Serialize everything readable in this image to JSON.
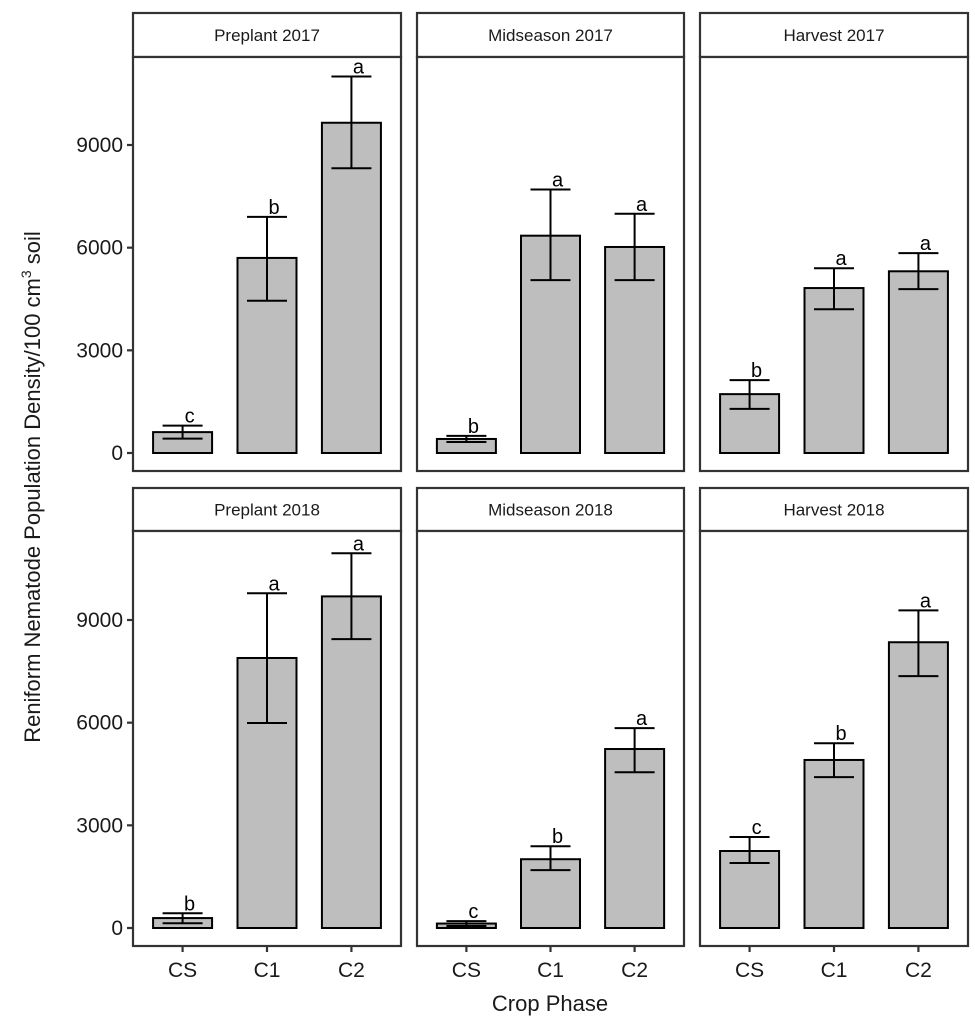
{
  "chart_data": {
    "type": "bar",
    "title": "",
    "xlabel": "Crop Phase",
    "ylabel": "Reniform Nematode Population Density/100 cm",
    "ylabel_superscript": "3",
    "ylabel_suffix": " soil",
    "categories": [
      "CS",
      "C1",
      "C2"
    ],
    "ylim": [
      0,
      11400
    ],
    "yticks": [
      0,
      3000,
      6000,
      9000
    ],
    "ytick_labels": [
      "0",
      "3000",
      "6000",
      "9000"
    ],
    "grid": false,
    "legend": null,
    "colors": {
      "bar_fill": "#bebebe",
      "bar_stroke": "#000000",
      "panel_border": "#333333",
      "strip_fill": "#ffffff",
      "text": "#1a1a1a"
    },
    "layout_rows": [
      [
        "Preplant 2017",
        "Midseason 2017",
        "Harvest 2017"
      ],
      [
        "Preplant 2018",
        "Midseason 2018",
        "Harvest 2018"
      ]
    ],
    "panels": [
      {
        "title": "Preplant 2017",
        "values": [
          610,
          5700,
          9650
        ],
        "error_upper": [
          800,
          6900,
          11000
        ],
        "error_lower": [
          420,
          4450,
          8320
        ],
        "letters": [
          "c",
          "b",
          "a"
        ]
      },
      {
        "title": "Midseason 2017",
        "values": [
          410,
          6350,
          6020
        ],
        "error_upper": [
          500,
          7700,
          6990
        ],
        "error_lower": [
          320,
          5050,
          5050
        ],
        "letters": [
          "b",
          "a",
          "a"
        ]
      },
      {
        "title": "Harvest 2017",
        "values": [
          1720,
          4820,
          5310
        ],
        "error_upper": [
          2130,
          5400,
          5840
        ],
        "error_lower": [
          1290,
          4200,
          4790
        ],
        "letters": [
          "b",
          "a",
          "a"
        ]
      },
      {
        "title": "Preplant 2018",
        "values": [
          290,
          7890,
          9690
        ],
        "error_upper": [
          430,
          9780,
          10950
        ],
        "error_lower": [
          140,
          5990,
          8440
        ],
        "letters": [
          "b",
          "a",
          "a"
        ]
      },
      {
        "title": "Midseason 2018",
        "values": [
          130,
          2010,
          5230
        ],
        "error_upper": [
          200,
          2390,
          5840
        ],
        "error_lower": [
          60,
          1690,
          4550
        ],
        "letters": [
          "c",
          "b",
          "a"
        ]
      },
      {
        "title": "Harvest 2018",
        "values": [
          2250,
          4910,
          8350
        ],
        "error_upper": [
          2660,
          5400,
          9280
        ],
        "error_lower": [
          1900,
          4410,
          7360
        ],
        "letters": [
          "c",
          "b",
          "a"
        ]
      }
    ]
  }
}
